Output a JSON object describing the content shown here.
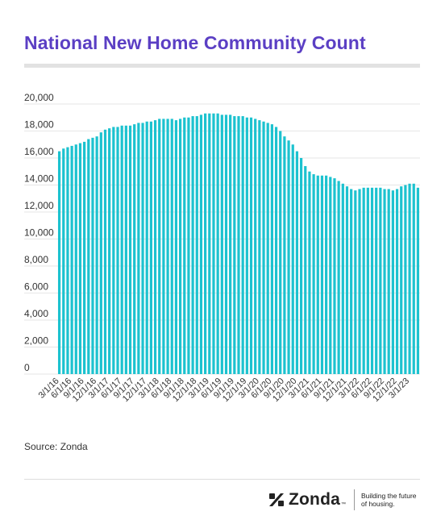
{
  "title": "National New Home Community Count",
  "source": "Source: Zonda",
  "brand": {
    "name": "Zonda",
    "tm": "™",
    "tagline_line1": "Building the future",
    "tagline_line2": "of housing."
  },
  "colors": {
    "title": "#5b3fc4",
    "bar": "#1cc2cf",
    "grid": "#e6e6e6"
  },
  "chart_data": {
    "type": "bar",
    "title": "National New Home Community Count",
    "xlabel": "",
    "ylabel": "",
    "ylim": [
      0,
      20000
    ],
    "yticks": [
      0,
      2000,
      4000,
      6000,
      8000,
      10000,
      12000,
      14000,
      16000,
      18000,
      20000
    ],
    "ytick_labels": [
      "0",
      "2,000",
      "4,000",
      "6,000",
      "8,000",
      "10,000",
      "12,000",
      "14,000",
      "16,000",
      "18,000",
      "20,000"
    ],
    "grid": true,
    "categories": [
      "3/1/16",
      "4/1/16",
      "5/1/16",
      "6/1/16",
      "7/1/16",
      "8/1/16",
      "9/1/16",
      "10/1/16",
      "11/1/16",
      "12/1/16",
      "1/1/17",
      "2/1/17",
      "3/1/17",
      "4/1/17",
      "5/1/17",
      "6/1/17",
      "7/1/17",
      "8/1/17",
      "9/1/17",
      "10/1/17",
      "11/1/17",
      "12/1/17",
      "1/1/18",
      "2/1/18",
      "3/1/18",
      "4/1/18",
      "5/1/18",
      "6/1/18",
      "7/1/18",
      "8/1/18",
      "9/1/18",
      "10/1/18",
      "11/1/18",
      "12/1/18",
      "1/1/19",
      "2/1/19",
      "3/1/19",
      "4/1/19",
      "5/1/19",
      "6/1/19",
      "7/1/19",
      "8/1/19",
      "9/1/19",
      "10/1/19",
      "11/1/19",
      "12/1/19",
      "1/1/20",
      "2/1/20",
      "3/1/20",
      "4/1/20",
      "5/1/20",
      "6/1/20",
      "7/1/20",
      "8/1/20",
      "9/1/20",
      "10/1/20",
      "11/1/20",
      "12/1/20",
      "1/1/21",
      "2/1/21",
      "3/1/21",
      "4/1/21",
      "5/1/21",
      "6/1/21",
      "7/1/21",
      "8/1/21",
      "9/1/21",
      "10/1/21",
      "11/1/21",
      "12/1/21",
      "1/1/22",
      "2/1/22",
      "3/1/22",
      "4/1/22",
      "5/1/22",
      "6/1/22",
      "7/1/22",
      "8/1/22",
      "9/1/22",
      "10/1/22",
      "11/1/22",
      "12/1/22",
      "1/1/23",
      "2/1/23",
      "3/1/23",
      "4/1/23",
      "5/1/23"
    ],
    "tick_labels": [
      "3/1/16",
      "6/1/16",
      "9/1/16",
      "12/1/16",
      "3/1/17",
      "6/1/17",
      "9/1/17",
      "12/1/17",
      "3/1/18",
      "6/1/18",
      "9/1/18",
      "12/1/18",
      "3/1/19",
      "6/1/19",
      "9/1/19",
      "12/1/19",
      "3/1/20",
      "6/1/20",
      "9/1/20",
      "12/1/20",
      "3/1/21",
      "6/1/21",
      "9/1/21",
      "12/1/21",
      "3/1/22",
      "6/1/22",
      "9/1/22",
      "12/1/22",
      "3/1/23"
    ],
    "values": [
      16500,
      16700,
      16800,
      16900,
      17000,
      17100,
      17200,
      17400,
      17500,
      17600,
      17900,
      18100,
      18200,
      18300,
      18300,
      18400,
      18400,
      18400,
      18500,
      18600,
      18600,
      18700,
      18700,
      18800,
      18900,
      18900,
      18900,
      18900,
      18800,
      18900,
      19000,
      19000,
      19100,
      19100,
      19200,
      19300,
      19300,
      19300,
      19300,
      19200,
      19200,
      19200,
      19100,
      19100,
      19100,
      19000,
      19000,
      18900,
      18800,
      18700,
      18600,
      18500,
      18300,
      18000,
      17600,
      17300,
      17000,
      16500,
      16000,
      15400,
      15000,
      14800,
      14700,
      14700,
      14700,
      14600,
      14500,
      14300,
      14100,
      13900,
      13700,
      13600,
      13700,
      13800,
      13800,
      13800,
      13800,
      13800,
      13700,
      13700,
      13600,
      13700,
      13900,
      14000,
      14100,
      14100,
      13800
    ]
  }
}
